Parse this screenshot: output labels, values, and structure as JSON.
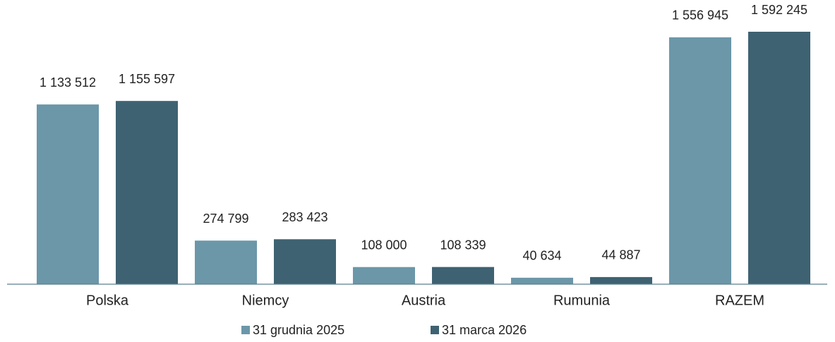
{
  "chart_data": {
    "type": "bar",
    "categories": [
      "Polska",
      "Niemcy",
      "Austria",
      "Rumunia",
      "RAZEM"
    ],
    "series": [
      {
        "name": "31 grudnia 2025",
        "color": "#6b97a9",
        "values": [
          1133512,
          274799,
          108000,
          40634,
          1556945
        ],
        "value_labels": [
          "1 133 512",
          "274 799",
          "108 000",
          "40 634",
          "1 556 945"
        ]
      },
      {
        "name": "31 marca 2026",
        "color": "#3e6272",
        "values": [
          1155597,
          283423,
          108339,
          44887,
          1592245
        ],
        "value_labels": [
          "1 155 597",
          "283 423",
          "108 339",
          "44 887",
          "1 592 245"
        ]
      }
    ],
    "legend": "bottom"
  }
}
